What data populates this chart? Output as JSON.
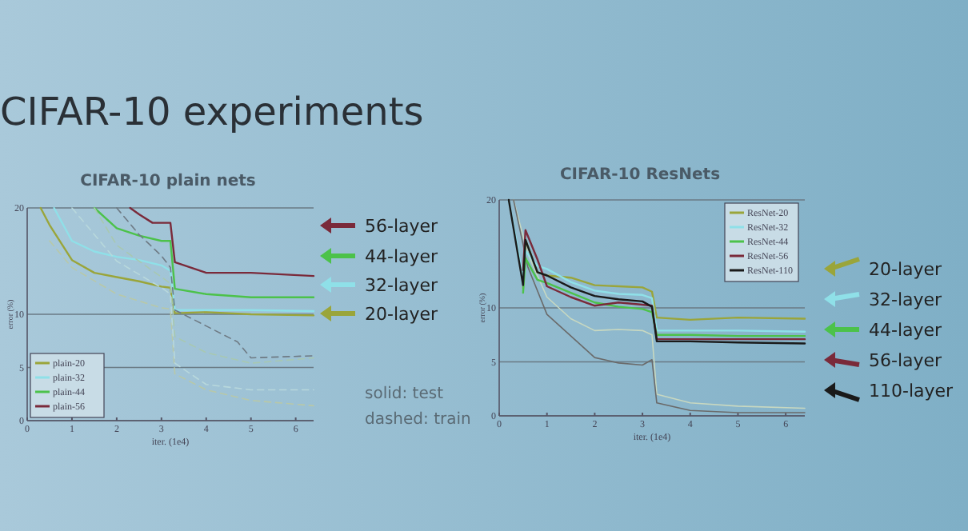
{
  "chart_data": [
    {
      "type": "line",
      "title": "CIFAR-10 plain nets",
      "xlabel": "iter. (1e4)",
      "ylabel": "error (%)",
      "xlim": [
        0,
        6.4
      ],
      "ylim": [
        0,
        20
      ],
      "xticks": [
        0,
        1,
        2,
        3,
        4,
        5,
        6
      ],
      "yticks": [
        0,
        5,
        10,
        20
      ],
      "grid": "y",
      "legend": "bottom left",
      "annotations": [
        "CIFAR-10 experiments",
        "56-layer",
        "44-layer",
        "32-layer",
        "20-layer",
        "solid: test",
        "dashed: train"
      ],
      "series": [
        {
          "name": "plain-20",
          "color": "#9aa53a",
          "line_style": "solid",
          "x": [
            0.3,
            0.5,
            1,
            1.5,
            2,
            2.5,
            3,
            3.2,
            3.3,
            4,
            5,
            6.4
          ],
          "values": [
            20,
            18.4,
            15.1,
            13.9,
            13.5,
            13.1,
            12.6,
            12.5,
            10.1,
            10.2,
            10,
            9.9
          ]
        },
        {
          "name": "plain-32",
          "color": "#8fe0e8",
          "line_style": "solid",
          "x": [
            0.6,
            1,
            1.5,
            2,
            2.5,
            3,
            3.2,
            3.3,
            4,
            5,
            6.4
          ],
          "values": [
            20,
            16.9,
            15.9,
            15.4,
            15.1,
            14.6,
            14.1,
            10.4,
            10.4,
            10.4,
            10.3
          ]
        },
        {
          "name": "plain-44",
          "color": "#4cc24a",
          "line_style": "solid",
          "x": [
            1.5,
            2,
            2.5,
            3,
            3.2,
            3.3,
            4,
            5,
            6.4
          ],
          "values": [
            20,
            18.1,
            17.4,
            16.9,
            16.9,
            12.4,
            11.9,
            11.6,
            11.6
          ]
        },
        {
          "name": "plain-56",
          "color": "#7a2a3a",
          "line_style": "solid",
          "x": [
            2.3,
            2.5,
            2.8,
            3.2,
            3.3,
            4,
            5,
            6.4
          ],
          "values": [
            20,
            19.4,
            18.6,
            18.6,
            14.9,
            13.9,
            13.9,
            13.6
          ]
        },
        {
          "color": "#b8c8a8",
          "line_style": "dashed",
          "x": [
            0.5,
            1,
            2,
            3,
            3.2,
            3.3,
            4,
            5,
            6.4
          ],
          "values": [
            16.9,
            14.4,
            11.9,
            10.6,
            10.5,
            4.4,
            2.9,
            1.9,
            1.4
          ]
        },
        {
          "color": "#b8d8dc",
          "line_style": "dashed",
          "x": [
            1,
            2,
            3,
            3.2,
            3.3,
            4,
            5,
            6.4
          ],
          "values": [
            20,
            15,
            12.5,
            11.9,
            5.4,
            3.4,
            2.9,
            2.9
          ]
        },
        {
          "color": "#a8c8b0",
          "line_style": "dashed",
          "x": [
            1.5,
            2,
            3,
            3.2,
            3.3,
            4,
            5,
            6.4
          ],
          "values": [
            20,
            16.5,
            13.5,
            12.9,
            7.9,
            6.4,
            5.4,
            5.9
          ]
        },
        {
          "color": "#6e7a84",
          "line_style": "dashed",
          "x": [
            2,
            2.5,
            3,
            3.2,
            3.3,
            4,
            4.7,
            5,
            6.4
          ],
          "values": [
            20,
            17.5,
            15.5,
            14.4,
            10.4,
            8.9,
            7.4,
            5.9,
            6.1
          ]
        }
      ]
    },
    {
      "type": "line",
      "title": "CIFAR-10 ResNets",
      "xlabel": "iter. (1e4)",
      "ylabel": "error (%)",
      "xlim": [
        0,
        6.4
      ],
      "ylim": [
        0,
        20
      ],
      "xticks": [
        0,
        1,
        2,
        3,
        4,
        5,
        6
      ],
      "yticks": [
        0,
        5,
        10,
        20
      ],
      "grid": "y",
      "legend": "top right",
      "annotations": [
        "20-layer",
        "32-layer",
        "44-layer",
        "56-layer",
        "110-layer"
      ],
      "series": [
        {
          "color": "#c8d8c0",
          "line_style": "solid",
          "x": [
            0.3,
            0.6,
            1,
            1.5,
            2,
            2.5,
            3,
            3.2,
            3.3,
            4,
            5,
            6.4
          ],
          "values": [
            20,
            15,
            11,
            9,
            7.9,
            8,
            7.9,
            7.5,
            2,
            1.2,
            0.9,
            0.7
          ]
        },
        {
          "color": "#6a6a6a",
          "line_style": "solid",
          "x": [
            0.3,
            0.6,
            1,
            1.5,
            2,
            2.5,
            3,
            3.2,
            3.3,
            4,
            5,
            6.4
          ],
          "values": [
            20,
            13.8,
            9.4,
            7.4,
            5.4,
            4.9,
            4.7,
            5.2,
            1.2,
            0.5,
            0.3,
            0.3
          ]
        },
        {
          "name": "ResNet-20",
          "color": "#9aa53a",
          "line_style": "solid",
          "x": [
            0.5,
            0.55,
            0.8,
            1,
            1.5,
            2,
            2.5,
            3,
            3.2,
            3.3,
            4,
            5,
            6.4
          ],
          "values": [
            11.8,
            16.3,
            13.3,
            13,
            12.8,
            12.1,
            12,
            11.9,
            11.5,
            9.1,
            8.9,
            9.1,
            9
          ]
        },
        {
          "name": "ResNet-32",
          "color": "#8fe0e8",
          "line_style": "solid",
          "x": [
            0.2,
            0.5,
            0.55,
            0.8,
            1,
            1.5,
            2,
            2.5,
            3,
            3.2,
            3.3,
            4,
            5,
            6.4
          ],
          "values": [
            20,
            12.8,
            15.3,
            13.9,
            13.6,
            12.4,
            11.6,
            11.3,
            11.2,
            10.9,
            7.9,
            7.9,
            7.9,
            7.8
          ]
        },
        {
          "name": "ResNet-44",
          "color": "#4cc24a",
          "line_style": "solid",
          "x": [
            0.5,
            0.55,
            0.8,
            1,
            1.5,
            2,
            2.5,
            3,
            3.2,
            3.3,
            4,
            5,
            6.4
          ],
          "values": [
            11.4,
            14.6,
            12.6,
            12.3,
            11.4,
            10.5,
            10.1,
            9.9,
            9.6,
            7.5,
            7.5,
            7.4,
            7.4
          ]
        },
        {
          "name": "ResNet-56",
          "color": "#7a2a3a",
          "line_style": "solid",
          "x": [
            0.5,
            0.55,
            0.8,
            1,
            1.5,
            2,
            2.5,
            3,
            3.2,
            3.3,
            4,
            5,
            6.4
          ],
          "values": [
            13.5,
            17.2,
            14.5,
            12,
            11,
            10.2,
            10.5,
            10.3,
            10.2,
            7.1,
            7.1,
            7.1,
            7.1
          ]
        },
        {
          "name": "ResNet-110",
          "color": "#1a1a1a",
          "line_style": "solid",
          "x": [
            0.2,
            0.5,
            0.55,
            0.8,
            1,
            1.5,
            2,
            2.5,
            3,
            3.2,
            3.3,
            4,
            5,
            6.4
          ],
          "values": [
            20,
            12.1,
            16.3,
            13.3,
            13,
            11.9,
            11.1,
            10.8,
            10.6,
            10.1,
            6.9,
            6.9,
            6.8,
            6.7
          ]
        }
      ]
    }
  ]
}
